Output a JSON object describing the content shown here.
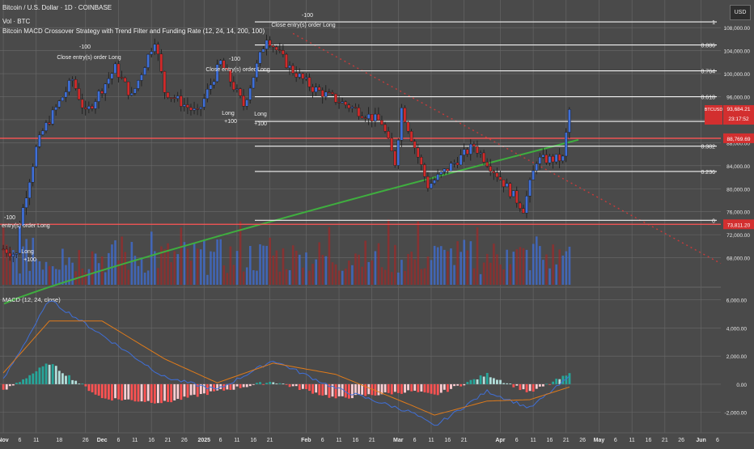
{
  "header": {
    "symbol_line": "Bitcoin / U.S. Dollar · 1D · COINBASE",
    "volume_line": "Vol · BTC",
    "strategy_line": "Bitcoin MACD Crossover Strategy with Trend Filter and Funding Rate (12, 24, 14, 200, 100)",
    "currency_button": "USD"
  },
  "colors": {
    "background": "#4a4a4a",
    "grid": "#6a6a6a",
    "up_candle": "#3f6fd8",
    "down_candle": "#d12a2a",
    "ma200": "#3fae3f",
    "macd_line": "#3f6fd8",
    "signal_line": "#e07b1a",
    "hist_pos_strong": "#26a69a",
    "hist_pos_weak": "#b2dfdb",
    "hist_neg_strong": "#ff5252",
    "hist_neg_weak": "#ffcdd2",
    "price_line": "#ff5555"
  },
  "price_axis": {
    "ticks": [
      "108,000.00",
      "104,000.00",
      "100,000.00",
      "96,000.00",
      "92,000.00",
      "88,000.00",
      "84,000.00",
      "80,000.00",
      "76,000.00",
      "72,000.00",
      "68,000.00"
    ],
    "last_price_badge": [
      "BTCUSD",
      "93,684.21",
      "23:17:52"
    ],
    "level_badge_upper": "88,769.69",
    "level_badge_lower": "73,811.20"
  },
  "fib_levels": [
    "1",
    "0.886",
    "0.764",
    "0.618",
    "0.5",
    "0.382",
    "0.236",
    "0"
  ],
  "annotations": [
    "Close entry(s) order Long",
    "Long",
    "+100",
    "-100"
  ],
  "macd_panel": {
    "title": "MACD (12, 24, close)",
    "ticks": [
      "6,000.00",
      "4,000.00",
      "2,000.00",
      "0.00",
      "-2,000.00"
    ]
  },
  "time_axis": [
    "Nov",
    "6",
    "11",
    "18",
    "26",
    "Dec",
    "6",
    "11",
    "16",
    "21",
    "26",
    "2025",
    "6",
    "11",
    "16",
    "21",
    "Feb",
    "6",
    "11",
    "16",
    "21",
    "Mar",
    "6",
    "11",
    "16",
    "21",
    "Apr",
    "6",
    "11",
    "16",
    "21",
    "26",
    "May",
    "6",
    "11",
    "16",
    "21",
    "26",
    "Jun",
    "6"
  ],
  "chart_data": {
    "type": "candlestick",
    "symbol": "Bitcoin / U.S. Dollar",
    "timeframe": "1D",
    "exchange": "COINBASE",
    "price_range": [
      64000,
      110000
    ],
    "keypoints": [
      {
        "date": "2024-11-01",
        "close": 69500
      },
      {
        "date": "2024-11-05",
        "close": 68500
      },
      {
        "date": "2024-11-06",
        "close": 74000
      },
      {
        "date": "2024-11-11",
        "close": 87000
      },
      {
        "date": "2024-11-13",
        "close": 90000
      },
      {
        "date": "2024-11-22",
        "close": 99000
      },
      {
        "date": "2024-11-26",
        "close": 93000
      },
      {
        "date": "2024-12-05",
        "close": 101000
      },
      {
        "date": "2024-12-10",
        "close": 96000
      },
      {
        "date": "2024-12-17",
        "close": 106000
      },
      {
        "date": "2024-12-20",
        "close": 97000
      },
      {
        "date": "2024-12-30",
        "close": 93000
      },
      {
        "date": "2025-01-06",
        "close": 102000
      },
      {
        "date": "2025-01-13",
        "close": 94500
      },
      {
        "date": "2025-01-20",
        "close": 106500
      },
      {
        "date": "2025-01-27",
        "close": 101000
      },
      {
        "date": "2025-02-03",
        "close": 97500
      },
      {
        "date": "2025-02-24",
        "close": 91500
      },
      {
        "date": "2025-02-28",
        "close": 84500
      },
      {
        "date": "2025-03-02",
        "close": 94000
      },
      {
        "date": "2025-03-10",
        "close": 80500
      },
      {
        "date": "2025-03-24",
        "close": 87500
      },
      {
        "date": "2025-03-31",
        "close": 82500
      },
      {
        "date": "2025-04-08",
        "close": 76500
      },
      {
        "date": "2025-04-12",
        "close": 85000
      },
      {
        "date": "2025-04-20",
        "close": 85200
      },
      {
        "date": "2025-04-22",
        "close": 93684
      }
    ],
    "last_price": 93684.21,
    "horizontal_levels": [
      88769.69,
      73811.2
    ],
    "fibonacci": {
      "1": 109000,
      "0.886": 105000,
      "0.764": 100500,
      "0.618": 96000,
      "0.5": 91700,
      "0.382": 87400,
      "0.236": 83000,
      "0": 74500
    },
    "ma200_trend": {
      "start": 60000,
      "end": 88500
    },
    "macd_range": [
      -3000,
      6500
    ],
    "macd_keypoints": [
      {
        "date": "2024-11-01",
        "macd": 300,
        "signal": 800
      },
      {
        "date": "2024-11-15",
        "macd": 6000,
        "signal": 4500
      },
      {
        "date": "2024-12-01",
        "macd": 3500,
        "signal": 4500
      },
      {
        "date": "2024-12-20",
        "macd": 500,
        "signal": 1800
      },
      {
        "date": "2025-01-05",
        "macd": -400,
        "signal": 100
      },
      {
        "date": "2025-01-22",
        "macd": 1700,
        "signal": 1500
      },
      {
        "date": "2025-02-10",
        "macd": -300,
        "signal": 700
      },
      {
        "date": "2025-03-05",
        "macd": -2000,
        "signal": -1500
      },
      {
        "date": "2025-03-12",
        "macd": -3000,
        "signal": -2200
      },
      {
        "date": "2025-03-28",
        "macd": -500,
        "signal": -1200
      },
      {
        "date": "2025-04-10",
        "macd": -1700,
        "signal": -1100
      },
      {
        "date": "2025-04-22",
        "macd": 500,
        "signal": -200
      }
    ]
  }
}
